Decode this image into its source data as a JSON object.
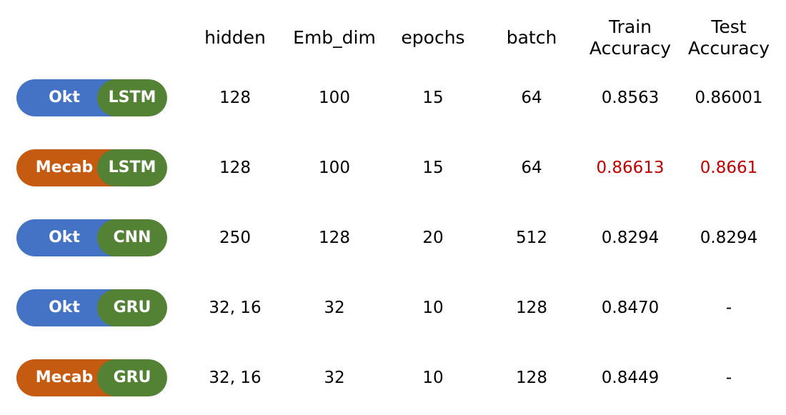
{
  "colors": {
    "okt": "#4472c4",
    "mecab": "#c55a11",
    "model": "#548235",
    "highlight": "#c00000"
  },
  "headers": [
    "hidden",
    "Emb_dim",
    "epochs",
    "batch",
    "Train\nAccuracy",
    "Test\nAccuracy"
  ],
  "rows": [
    {
      "tokenizer": "Okt",
      "tokenizer_color": "okt",
      "model": "LSTM",
      "hidden": "128",
      "emb_dim": "100",
      "epochs": "15",
      "batch": "64",
      "train_acc": "0.8563",
      "test_acc": "0.86001",
      "highlight": false
    },
    {
      "tokenizer": "Mecab",
      "tokenizer_color": "mecab",
      "model": "LSTM",
      "hidden": "128",
      "emb_dim": "100",
      "epochs": "15",
      "batch": "64",
      "train_acc": "0.86613",
      "test_acc": "0.8661",
      "highlight": true
    },
    {
      "tokenizer": "Okt",
      "tokenizer_color": "okt",
      "model": "CNN",
      "hidden": "250",
      "emb_dim": "128",
      "epochs": "20",
      "batch": "512",
      "train_acc": "0.8294",
      "test_acc": "0.8294",
      "highlight": false
    },
    {
      "tokenizer": "Okt",
      "tokenizer_color": "okt",
      "model": "GRU",
      "hidden": "32, 16",
      "emb_dim": "32",
      "epochs": "10",
      "batch": "128",
      "train_acc": "0.8470",
      "test_acc": "-",
      "highlight": false
    },
    {
      "tokenizer": "Mecab",
      "tokenizer_color": "mecab",
      "model": "GRU",
      "hidden": "32, 16",
      "emb_dim": "32",
      "epochs": "10",
      "batch": "128",
      "train_acc": "0.8449",
      "test_acc": "-",
      "highlight": false
    }
  ]
}
